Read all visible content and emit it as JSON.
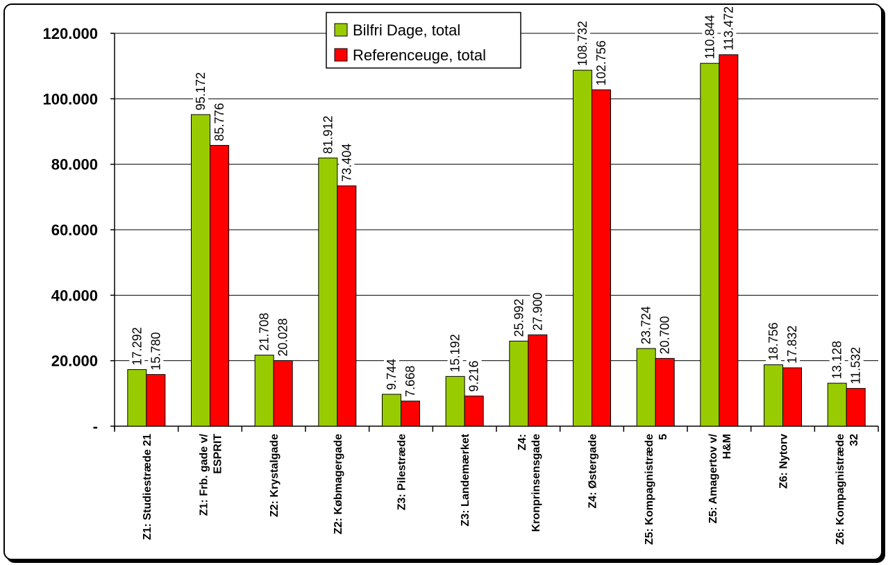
{
  "chart_data": {
    "type": "bar",
    "categories": [
      [
        "Z1: Studiestræde 21"
      ],
      [
        "Z1: Frb. gade v/",
        "ESPRIT"
      ],
      [
        "Z2: Krystalgade"
      ],
      [
        "Z2: Købmagergade"
      ],
      [
        "Z3: Pilestræde"
      ],
      [
        "Z3: Landemærket"
      ],
      [
        "Z4:",
        "Kronprinsensgade"
      ],
      [
        "Z4: Østergade"
      ],
      [
        "Z5: Kompagnistræde",
        "5"
      ],
      [
        "Z5: Amagertov v/",
        "H&M"
      ],
      [
        "Z6: Nytorv"
      ],
      [
        "Z6: Kompagnistræde",
        "32"
      ]
    ],
    "series": [
      {
        "name": "Bilfri Dage, total",
        "color": "#99cc00",
        "values": [
          17292,
          95172,
          21708,
          81912,
          9744,
          15192,
          25992,
          108732,
          23724,
          110844,
          18756,
          13128
        ],
        "labels": [
          "17.292",
          "95.172",
          "21.708",
          "81.912",
          "9.744",
          "15.192",
          "25.992",
          "108.732",
          "23.724",
          "110.844",
          "18.756",
          "13.128"
        ]
      },
      {
        "name": "Referenceuge, total",
        "color": "#ff0000",
        "values": [
          15780,
          85776,
          20028,
          73404,
          7668,
          9216,
          27900,
          102756,
          20700,
          113472,
          17832,
          11532
        ],
        "labels": [
          "15.780",
          "85.776",
          "20.028",
          "73.404",
          "7.668",
          "9.216",
          "27.900",
          "102.756",
          "20.700",
          "113.472",
          "17.832",
          "11.532"
        ]
      }
    ],
    "yticks": [
      {
        "value": 0,
        "label": "-"
      },
      {
        "value": 20000,
        "label": "20.000"
      },
      {
        "value": 40000,
        "label": "40.000"
      },
      {
        "value": 60000,
        "label": "60.000"
      },
      {
        "value": 80000,
        "label": "80.000"
      },
      {
        "value": 100000,
        "label": "100.000"
      },
      {
        "value": 120000,
        "label": "120.000"
      }
    ],
    "ylim": [
      0,
      120000
    ],
    "grid": true,
    "legend_position": "top-center"
  }
}
